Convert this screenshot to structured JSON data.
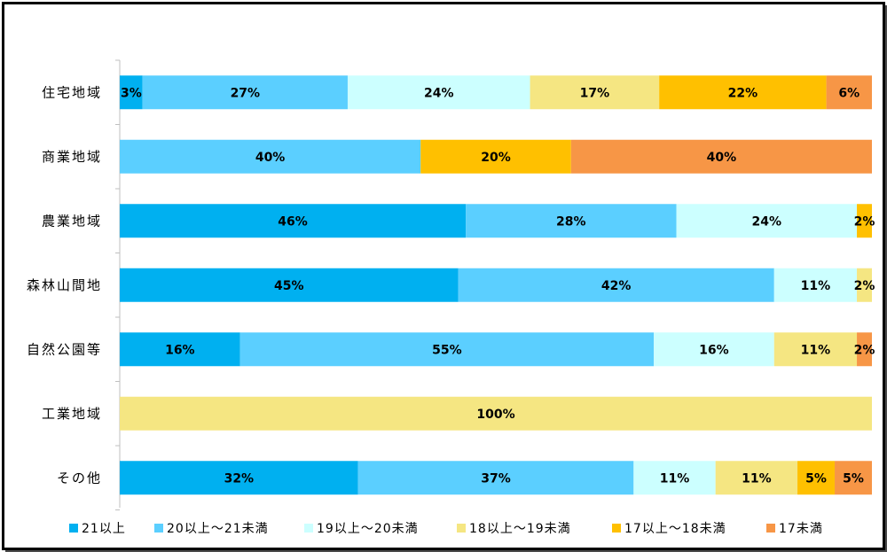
{
  "chart_data": {
    "type": "bar",
    "orientation": "horizontal",
    "stacked": "percent",
    "categories": [
      "住宅地域",
      "商業地域",
      "農業地域",
      "森林山間地",
      "自然公園等",
      "工業地域",
      "その他"
    ],
    "series": [
      {
        "name": "21以上",
        "color": "#00b0f0",
        "values": [
          3,
          0,
          46,
          45,
          16,
          0,
          32
        ],
        "labels": [
          "3%",
          "",
          "46%",
          "45%",
          "16%",
          "",
          "32%"
        ]
      },
      {
        "name": "20以上～21未満",
        "color": "#5bcfff",
        "values": [
          27,
          40,
          28,
          42,
          55,
          0,
          37
        ],
        "labels": [
          "27%",
          "40%",
          "28%",
          "42%",
          "55%",
          "",
          "37%"
        ]
      },
      {
        "name": "19以上～20未満",
        "color": "#ccffff",
        "values": [
          24,
          0,
          24,
          11,
          16,
          0,
          11
        ],
        "labels": [
          "24%",
          "",
          "24%",
          "11%",
          "16%",
          "",
          "11%"
        ]
      },
      {
        "name": "18以上～19未満",
        "color": "#f5e682",
        "values": [
          17,
          0,
          0,
          2,
          11,
          100,
          11
        ],
        "labels": [
          "17%",
          "",
          "",
          "2%",
          "11%",
          "100%",
          "11%"
        ]
      },
      {
        "name": "17以上～18未満",
        "color": "#ffc000",
        "values": [
          22,
          20,
          2,
          0,
          0,
          0,
          5
        ],
        "labels": [
          "22%",
          "20%",
          "2%",
          "",
          "",
          "",
          "5%"
        ]
      },
      {
        "name": "17未満",
        "color": "#f79646",
        "values": [
          6,
          40,
          0,
          0,
          2,
          0,
          5
        ],
        "labels": [
          "6%",
          "40%",
          "",
          "",
          "2%",
          "",
          "5%"
        ]
      }
    ],
    "xlim": [
      0,
      100
    ],
    "grid": false,
    "legend_position": "bottom"
  }
}
